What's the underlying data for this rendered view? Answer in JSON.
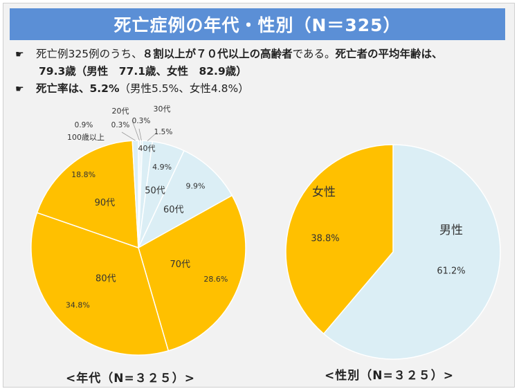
{
  "title": "死亡症例の年代・性別（N＝325）",
  "bullets": {
    "mark": "☛",
    "line1_a": "死亡例325例のうち、",
    "line1_b": "８割以上が７０代以上の高齢者",
    "line1_c": "である。",
    "line1_d": "死亡者の平均年齢は、",
    "line2": "79.3歳（男性　77.1歳、女性　82.9歳）",
    "line3_a": "死亡率は、5.2%",
    "line3_b": "（男性5.5%、女性4.8%）"
  },
  "colors": {
    "title_bg": "#5b8fd6",
    "high_age": "#ffc000",
    "low_age": "#dbeef5",
    "female": "#ffc000",
    "male": "#dbeef5"
  },
  "chart_data": [
    {
      "type": "pie",
      "title": "<年代（N=３２５）>",
      "categories": [
        "20代",
        "30代",
        "40代",
        "50代",
        "60代",
        "70代",
        "80代",
        "90代",
        "100歳以上"
      ],
      "values": [
        0.3,
        0.3,
        1.5,
        4.9,
        9.9,
        28.6,
        34.8,
        18.8,
        0.9
      ],
      "value_labels": [
        "0.3%",
        "0.3%",
        "1.5%",
        "4.9%",
        "9.9%",
        "28.6%",
        "34.8%",
        "18.8%",
        "0.9%"
      ],
      "units": "%",
      "start": "12 o'clock",
      "direction": "clockwise"
    },
    {
      "type": "pie",
      "title": "<性別（N=３２５）>",
      "categories": [
        "男性",
        "女性"
      ],
      "values": [
        61.2,
        38.8
      ],
      "value_labels": [
        "61.2%",
        "38.8%"
      ],
      "units": "%",
      "start": "12 o'clock",
      "direction": "clockwise"
    }
  ]
}
